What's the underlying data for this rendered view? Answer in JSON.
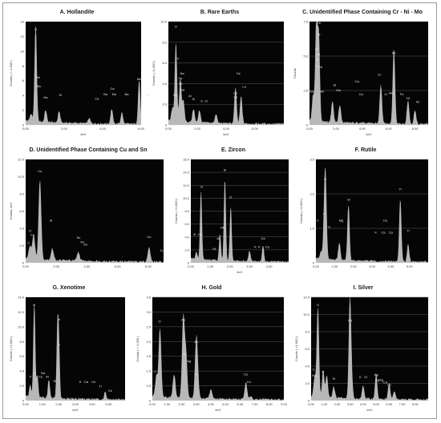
{
  "chart_data": [
    {
      "type": "area",
      "title": "A. Hollandite",
      "xlabel": "keV",
      "ylabel": "Counts ( × 1,000 )",
      "xlim": [
        0,
        6
      ],
      "ylim": [
        0,
        14
      ],
      "xticks": [
        "0.00",
        "2.00",
        "4.00",
        "6.00"
      ],
      "yticks": [
        "0",
        "2",
        "4",
        "6",
        "8",
        "10",
        "12",
        "14"
      ],
      "grid": false,
      "series": [
        {
          "x": [
            0.28,
            0.52,
            1.04,
            1.74,
            3.3,
            4.47,
            5.0,
            5.9,
            6.4
          ],
          "values": [
            1.0,
            12.8,
            1.6,
            1.5,
            0.7,
            2.0,
            1.5,
            5.9,
            1.6
          ]
        }
      ],
      "annotations": [
        {
          "text": "O",
          "x": 0.52,
          "y": 12.8
        },
        {
          "text": "Mn",
          "x": 0.64,
          "y": 6.3
        },
        {
          "text": "Ba",
          "x": 0.68,
          "y": 5.1
        },
        {
          "text": "Na",
          "x": 1.04,
          "y": 3.6
        },
        {
          "text": "Si",
          "x": 1.8,
          "y": 3.9
        },
        {
          "text": "Ca",
          "x": 3.7,
          "y": 3.4
        },
        {
          "text": "Ca",
          "x": 4.5,
          "y": 4.8
        },
        {
          "text": "Ba",
          "x": 4.15,
          "y": 4.0
        },
        {
          "text": "Ba",
          "x": 4.6,
          "y": 4.0
        },
        {
          "text": "Ba",
          "x": 5.25,
          "y": 4.0
        },
        {
          "text": "Mn",
          "x": 5.9,
          "y": 6.1
        },
        {
          "text": "Mn",
          "x": 6.4,
          "y": 3.9
        }
      ]
    },
    {
      "type": "area",
      "title": "B. Rare Earths",
      "xlabel": "keV",
      "ylabel": "Counts ( ×1,000 )",
      "xlim": [
        0,
        8
      ],
      "ylim": [
        0,
        10
      ],
      "xticks": [
        "0.00",
        "2.00",
        "4.00",
        "6.00"
      ],
      "yticks": [
        "0",
        "2.0",
        "4.0",
        "6.0",
        "8.0",
        "10.0"
      ],
      "grid": true,
      "series": [
        {
          "x": [
            0.28,
            0.52,
            0.83,
            1.04,
            1.74,
            2.15,
            3.3,
            4.65,
            5.04
          ],
          "values": [
            1.2,
            7.5,
            4.2,
            2.0,
            1.3,
            1.2,
            0.9,
            3.4,
            2.6
          ]
        }
      ],
      "annotations": [
        {
          "text": "O",
          "x": 0.52,
          "y": 9.4
        },
        {
          "text": "F",
          "x": 0.68,
          "y": 6.3
        },
        {
          "text": "Na",
          "x": 0.95,
          "y": 4.9
        },
        {
          "text": "Ce",
          "x": 0.83,
          "y": 4.4
        },
        {
          "text": "La",
          "x": 0.85,
          "y": 3.9
        },
        {
          "text": "Nd",
          "x": 0.98,
          "y": 3.3
        },
        {
          "text": "Mg",
          "x": 0.5,
          "y": 2.8
        },
        {
          "text": "Al",
          "x": 1.49,
          "y": 2.7
        },
        {
          "text": "Si",
          "x": 1.74,
          "y": 2.4
        },
        {
          "text": "S",
          "x": 2.3,
          "y": 2.2
        },
        {
          "text": "Cl",
          "x": 2.62,
          "y": 2.2
        },
        {
          "text": "Ce",
          "x": 4.85,
          "y": 4.9
        },
        {
          "text": "La",
          "x": 5.25,
          "y": 3.6
        },
        {
          "text": "Ce",
          "x": 4.65,
          "y": 3.0
        },
        {
          "text": "La",
          "x": 4.65,
          "y": 2.6
        }
      ]
    },
    {
      "type": "area",
      "title": "C. Unidentified Phase Containing Cr - Ni - Mo",
      "xlabel": "keV",
      "ylabel": "Counts",
      "xlim": [
        0,
        9
      ],
      "ylim": [
        0,
        8
      ],
      "xticks": [
        "0.00",
        "2.00",
        "4.00",
        "6.00",
        "8.00"
      ],
      "yticks": [
        "0",
        "2.5",
        "5.0",
        "7.5"
      ],
      "grid": true,
      "series": [
        {
          "x": [
            0.28,
            0.52,
            0.7,
            1.74,
            2.3,
            5.41,
            6.4,
            7.47,
            8.0
          ],
          "values": [
            2.0,
            7.5,
            6.5,
            1.6,
            1.3,
            3.0,
            5.8,
            1.8,
            1.0
          ]
        }
      ],
      "annotations": [
        {
          "text": "Fe",
          "x": 0.72,
          "y": 7.8
        },
        {
          "text": "Ni",
          "x": 0.7,
          "y": 6.9
        },
        {
          "text": "Cr",
          "x": 0.55,
          "y": 5.8
        },
        {
          "text": "Ca",
          "x": 0.65,
          "y": 5.4
        },
        {
          "text": "O",
          "x": 0.58,
          "y": 5.0
        },
        {
          "text": "Cr",
          "x": 0.6,
          "y": 4.5
        },
        {
          "text": "Ni",
          "x": 0.85,
          "y": 4.4
        },
        {
          "text": "Mo",
          "x": 0.2,
          "y": 2.5
        },
        {
          "text": "Mn",
          "x": 0.95,
          "y": 2.5
        },
        {
          "text": "Si",
          "x": 1.9,
          "y": 3.0
        },
        {
          "text": "Mo",
          "x": 2.2,
          "y": 2.6
        },
        {
          "text": "Ca",
          "x": 3.6,
          "y": 3.3
        },
        {
          "text": "Ca",
          "x": 3.9,
          "y": 2.3
        },
        {
          "text": "Cr",
          "x": 5.3,
          "y": 3.8
        },
        {
          "text": "Fe",
          "x": 6.4,
          "y": 5.5
        },
        {
          "text": "Cr",
          "x": 5.8,
          "y": 2.3
        },
        {
          "text": "Mn",
          "x": 6.2,
          "y": 2.4
        },
        {
          "text": "Fe",
          "x": 7.0,
          "y": 2.3
        },
        {
          "text": "Ni",
          "x": 7.47,
          "y": 2.0
        },
        {
          "text": "Ni",
          "x": 8.2,
          "y": 1.7
        }
      ]
    },
    {
      "type": "area",
      "title": "D. Unidentified Phase Containing Cu and Sn",
      "xlabel": "",
      "ylabel": "Counts, keV",
      "xlim": [
        0,
        9
      ],
      "ylim": [
        0,
        12
      ],
      "xticks": [
        "0.00",
        "2.00",
        "4.00",
        "6.00",
        "8.00"
      ],
      "yticks": [
        "0",
        "2.0",
        "4.0",
        "6.0",
        "8.0",
        "10.0",
        "12.0"
      ],
      "grid": false,
      "series": [
        {
          "x": [
            0.28,
            0.52,
            0.93,
            1.74,
            3.44,
            8.05
          ],
          "values": [
            1.5,
            2.8,
            9.1,
            1.3,
            1.0,
            1.6
          ]
        }
      ],
      "annotations": [
        {
          "text": "Cu",
          "x": 0.93,
          "y": 10.5
        },
        {
          "text": "O",
          "x": 0.3,
          "y": 3.6
        },
        {
          "text": "Cu",
          "x": 0.45,
          "y": 3.1
        },
        {
          "text": "C",
          "x": 0.2,
          "y": 2.2
        },
        {
          "text": "Si",
          "x": 1.65,
          "y": 4.8
        },
        {
          "text": "Sn",
          "x": 3.45,
          "y": 2.8
        },
        {
          "text": "Sn",
          "x": 3.7,
          "y": 2.3
        },
        {
          "text": "Sn",
          "x": 3.9,
          "y": 2.0
        },
        {
          "text": "Cu",
          "x": 8.05,
          "y": 2.9
        },
        {
          "text": "Cu",
          "x": 8.9,
          "y": 1.3
        }
      ]
    },
    {
      "type": "area",
      "title": "E. Zircon",
      "xlabel": "keV",
      "ylabel": "Counts ( ×1,000 )",
      "xlim": [
        0,
        5
      ],
      "ylim": [
        0,
        16
      ],
      "xticks": [
        "0.00",
        "1.00",
        "2.00",
        "3.00",
        "4.00"
      ],
      "yticks": [
        "0",
        "2.0",
        "4.0",
        "6.0",
        "8.0",
        "10.0",
        "12.0",
        "14.0",
        "16.0"
      ],
      "grid": true,
      "series": [
        {
          "x": [
            0.28,
            0.52,
            1.49,
            1.74,
            2.04,
            3.0,
            3.69
          ],
          "values": [
            1.0,
            10.3,
            4.0,
            12.5,
            8.2,
            1.6,
            2.4
          ]
        }
      ],
      "annotations": [
        {
          "text": "O",
          "x": 0.55,
          "y": 11.6
        },
        {
          "text": "Si",
          "x": 1.74,
          "y": 14.2
        },
        {
          "text": "Zr",
          "x": 2.04,
          "y": 10.0
        },
        {
          "text": "Zr",
          "x": 0.2,
          "y": 4.2
        },
        {
          "text": "Hf",
          "x": 0.45,
          "y": 4.2
        },
        {
          "text": "Hf",
          "x": 1.6,
          "y": 5.3
        },
        {
          "text": "Al",
          "x": 1.4,
          "y": 3.6
        },
        {
          "text": "Hf",
          "x": 1.2,
          "y": 2.0
        },
        {
          "text": "Ca",
          "x": 3.69,
          "y": 3.6
        },
        {
          "text": "K",
          "x": 3.3,
          "y": 2.3
        },
        {
          "text": "K",
          "x": 3.5,
          "y": 2.3
        },
        {
          "text": "Ca",
          "x": 3.9,
          "y": 2.3
        }
      ]
    },
    {
      "type": "area",
      "title": "F. Rutile",
      "xlabel": "",
      "ylabel": "Counts ( ×1,000 )",
      "xlim": [
        0,
        6
      ],
      "ylim": [
        0,
        3
      ],
      "xticks": [
        "0.00",
        "1.00",
        "2.00",
        "3.00",
        "4.00",
        "5.00"
      ],
      "yticks": [
        "0",
        "1.0",
        "2.0",
        "3.0"
      ],
      "grid": true,
      "series": [
        {
          "x": [
            0.28,
            0.45,
            0.52,
            1.25,
            1.74,
            4.51,
            4.93
          ],
          "values": [
            0.2,
            1.2,
            2.0,
            0.5,
            1.6,
            1.8,
            0.5
          ]
        }
      ],
      "annotations": [
        {
          "text": "O",
          "x": 0.5,
          "y": 2.4
        },
        {
          "text": "O",
          "x": 0.45,
          "y": 1.4
        },
        {
          "text": "C",
          "x": 0.1,
          "y": 1.2
        },
        {
          "text": "Ti",
          "x": 0.7,
          "y": 1.0
        },
        {
          "text": "Si",
          "x": 1.75,
          "y": 1.8
        },
        {
          "text": "Mg",
          "x": 1.35,
          "y": 1.2
        },
        {
          "text": "Ca",
          "x": 3.7,
          "y": 1.2
        },
        {
          "text": "K",
          "x": 3.2,
          "y": 0.85
        },
        {
          "text": "Ca",
          "x": 3.6,
          "y": 0.85
        },
        {
          "text": "Ca",
          "x": 4.0,
          "y": 0.85
        },
        {
          "text": "Ti",
          "x": 4.51,
          "y": 2.1
        },
        {
          "text": "Ti",
          "x": 4.93,
          "y": 0.9
        }
      ]
    },
    {
      "type": "area",
      "title": "G. Xenotime",
      "xlabel": "keV",
      "ylabel": "Counts ( ×1,000 )",
      "xlim": [
        0,
        6
      ],
      "ylim": [
        0,
        14
      ],
      "xticks": [
        "0.00",
        "1.00",
        "2.00",
        "3.00",
        "4.00",
        "5.00"
      ],
      "yticks": [
        "0",
        "2.0",
        "4.0",
        "6.0",
        "8.0",
        "10.0",
        "12.0",
        "14.0"
      ],
      "grid": false,
      "series": [
        {
          "x": [
            0.28,
            0.52,
            0.7,
            1.4,
            1.92,
            2.0,
            4.8
          ],
          "values": [
            1.5,
            12.5,
            3.0,
            2.5,
            8.3,
            6.8,
            1.0
          ]
        }
      ],
      "annotations": [
        {
          "text": "O",
          "x": 0.52,
          "y": 12.8
        },
        {
          "text": "F",
          "x": 0.3,
          "y": 3.1
        },
        {
          "text": "Y",
          "x": 0.55,
          "y": 3.5
        },
        {
          "text": "Y",
          "x": 0.62,
          "y": 2.7
        },
        {
          "text": "Ce",
          "x": 0.9,
          "y": 3.1
        },
        {
          "text": "Na",
          "x": 1.05,
          "y": 3.6
        },
        {
          "text": "Al",
          "x": 1.3,
          "y": 3.1
        },
        {
          "text": "Si",
          "x": 1.75,
          "y": 2.5
        },
        {
          "text": "P",
          "x": 2.03,
          "y": 10.8
        },
        {
          "text": "Y",
          "x": 2.03,
          "y": 7.4
        },
        {
          "text": "K",
          "x": 3.3,
          "y": 2.4
        },
        {
          "text": "Ca",
          "x": 3.65,
          "y": 2.4
        },
        {
          "text": "Ce",
          "x": 4.1,
          "y": 2.4
        },
        {
          "text": "Ti",
          "x": 4.5,
          "y": 1.8
        },
        {
          "text": "Ce",
          "x": 5.1,
          "y": 1.2
        }
      ]
    },
    {
      "type": "area",
      "title": "H. Gold",
      "xlabel": "keV",
      "ylabel": "Counts ( × 1,000 )",
      "xlim": [
        0,
        9
      ],
      "ylim": [
        0,
        3.5
      ],
      "xticks": [
        "0.00",
        "1.00",
        "2.00",
        "3.00",
        "4.00",
        "5.00",
        "6.00",
        "7.00",
        "8.00",
        "9.00"
      ],
      "yticks": [
        "0",
        "0.5",
        "1.0",
        "1.5",
        "2.0",
        "2.5",
        "3.0",
        "3.5"
      ],
      "grid": true,
      "series": [
        {
          "x": [
            0.28,
            0.52,
            1.49,
            2.12,
            2.3,
            3.0,
            3.1,
            4.0,
            6.4,
            6.7
          ],
          "values": [
            0.7,
            2.3,
            0.8,
            2.7,
            1.5,
            1.8,
            0.6,
            0.3,
            0.55,
            0.1
          ]
        }
      ],
      "annotations": [
        {
          "text": "O",
          "x": 0.5,
          "y": 2.65
        },
        {
          "text": "C",
          "x": 0.2,
          "y": 0.95
        },
        {
          "text": "Au",
          "x": 2.12,
          "y": 2.7
        },
        {
          "text": "Ag",
          "x": 2.2,
          "y": 1.55
        },
        {
          "text": "Ag",
          "x": 2.5,
          "y": 1.3
        },
        {
          "text": "Au",
          "x": 3.0,
          "y": 1.95
        },
        {
          "text": "Fe",
          "x": 3.0,
          "y": 0.85
        },
        {
          "text": "Cu",
          "x": 6.4,
          "y": 0.85
        },
        {
          "text": "Cu",
          "x": 6.6,
          "y": 0.6
        }
      ]
    },
    {
      "type": "area",
      "title": "I. Silver",
      "xlabel": "keV",
      "ylabel": "Counts ( ×1,000 )",
      "xlim": [
        0,
        9
      ],
      "ylim": [
        0,
        12
      ],
      "xticks": [
        "0.00",
        "1.00",
        "2.00",
        "3.00",
        "4.00",
        "5.00",
        "6.00",
        "7.00",
        "8.00"
      ],
      "yticks": [
        "0",
        "2.0",
        "4.0",
        "6.0",
        "8.0",
        "10.0",
        "12.0"
      ],
      "grid": true,
      "series": [
        {
          "x": [
            0.28,
            0.52,
            0.93,
            1.2,
            1.74,
            2.98,
            3.1,
            4.0,
            5.0,
            6.0,
            6.4
          ],
          "values": [
            2.2,
            10.3,
            3.0,
            2.5,
            1.3,
            10.8,
            2.5,
            1.5,
            2.8,
            1.8,
            0.9
          ]
        }
      ],
      "annotations": [
        {
          "text": "O",
          "x": 0.52,
          "y": 11.0
        },
        {
          "text": "C",
          "x": 0.2,
          "y": 3.5
        },
        {
          "text": "Mg",
          "x": 0.25,
          "y": 2.8
        },
        {
          "text": "Ti",
          "x": 0.9,
          "y": 3.2
        },
        {
          "text": "Si",
          "x": 1.74,
          "y": 2.4
        },
        {
          "text": "Ag",
          "x": 2.98,
          "y": 9.2
        },
        {
          "text": "K",
          "x": 3.8,
          "y": 2.6
        },
        {
          "text": "Cl",
          "x": 4.2,
          "y": 2.6
        },
        {
          "text": "Ag",
          "x": 5.0,
          "y": 2.9
        },
        {
          "text": "Ag",
          "x": 5.1,
          "y": 2.3
        },
        {
          "text": "Ag",
          "x": 5.4,
          "y": 2.3
        },
        {
          "text": "Ca",
          "x": 5.7,
          "y": 2.0
        },
        {
          "text": "Cu",
          "x": 6.0,
          "y": 1.7
        }
      ]
    }
  ]
}
